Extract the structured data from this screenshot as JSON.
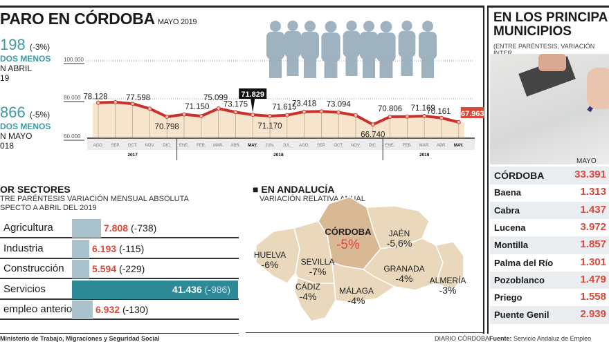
{
  "header": {
    "title": "PARO EN CÓRDOBA",
    "subtitle": "MAYO 2019"
  },
  "stats": [
    {
      "value": "198",
      "change": "(-3%)",
      "line1": "DOS MENOS",
      "line2": "N ABRIL",
      "line3": "19"
    },
    {
      "value": "866",
      "change": "(-5%)",
      "line1": "DOS MENOS",
      "line2": "N MAYO",
      "line3": "018"
    }
  ],
  "chart_data": {
    "type": "line",
    "title": "",
    "y_ticks": [
      "100.000",
      "80.000",
      "60.000"
    ],
    "ylim": [
      60000,
      100000
    ],
    "categories": [
      "AGO.",
      "SEP.",
      "OCT.",
      "NOV.",
      "DIC.",
      "ENE.",
      "FEB.",
      "MAR.",
      "ABR.",
      "MAY.",
      "JUN.",
      "JUL.",
      "AGO.",
      "SEP.",
      "OCT.",
      "NOV.",
      "DIC.",
      "ENE.",
      "FEB.",
      "MAR.",
      "ABR.",
      "MAY."
    ],
    "years": [
      "2017",
      "2018",
      "2019"
    ],
    "values": [
      78128,
      78400,
      77598,
      75000,
      70798,
      72000,
      71150,
      75099,
      73175,
      71829,
      71170,
      71615,
      73418,
      73600,
      73094,
      71500,
      66740,
      70806,
      70900,
      71169,
      70161,
      67963
    ],
    "labels": [
      "78.128",
      "",
      "77.598",
      "",
      "70.798",
      "",
      "71.150",
      "75.099",
      "73.175",
      "71.829",
      "71.170",
      "71.615",
      "73.418",
      "",
      "73.094",
      "",
      "66.740",
      "70.806",
      "",
      "71.169",
      "70.161",
      "67.963"
    ],
    "highlight_label": "71.829",
    "last_label": "67.963",
    "colors": {
      "line": "#c9302c",
      "fill": "#f6e5cc"
    }
  },
  "sectors": {
    "title": "OR SECTORES",
    "sub1": "TRE PARÉNTESIS VARIACIÓN MENSUAL ABSOLUTA",
    "sub2": "SPECTO A ABRIL DEL 2019",
    "items": [
      {
        "name": "Agricultura",
        "value": "7.808",
        "change": "(-738)",
        "num": 7808
      },
      {
        "name": "Industria",
        "value": "6.193",
        "change": "(-115)",
        "num": 6193
      },
      {
        "name": "Construcción",
        "value": "5.594",
        "change": "(-229)",
        "num": 5594
      },
      {
        "name": "Servicios",
        "value": "41.436",
        "change": "(-986)",
        "num": 41436
      },
      {
        "name": "empleo anterior",
        "value": "6.932",
        "change": "(-130)",
        "num": 6932
      }
    ]
  },
  "andalucia": {
    "title": "EN ANDALUCÍA",
    "sub": "VARIACIÓN RELATIVA ANUAL",
    "provinces": [
      {
        "name": "HUELVA",
        "value": "-6%"
      },
      {
        "name": "SEVILLA",
        "value": "-7%"
      },
      {
        "name": "CÓRDOBA",
        "value": "-5%"
      },
      {
        "name": "JAÉN",
        "value": "-5,6%"
      },
      {
        "name": "GRANADA",
        "value": "-4%"
      },
      {
        "name": "ALMERÍA",
        "value": "-3%"
      },
      {
        "name": "CÁDIZ",
        "value": "-4%"
      },
      {
        "name": "MÁLAGA",
        "value": "-4%"
      }
    ]
  },
  "municipios": {
    "title1": "EN LOS PRINCIPA",
    "title2": "MUNICIPIOS",
    "sub": "(ENTRE PARÉNTESIS, VARIACIÓN INTER",
    "col": "MAYO",
    "rows": [
      {
        "name": "CÓRDOBA",
        "value": "33.391"
      },
      {
        "name": "Baena",
        "value": "1.313"
      },
      {
        "name": "Cabra",
        "value": "1.437"
      },
      {
        "name": "Lucena",
        "value": "3.972"
      },
      {
        "name": "Montilla",
        "value": "1.857"
      },
      {
        "name": "Palma del Río",
        "value": "1.301"
      },
      {
        "name": "Pozoblanco",
        "value": "1.479"
      },
      {
        "name": "Priego",
        "value": "1.558"
      },
      {
        "name": "Puente Genil",
        "value": "2.939"
      }
    ]
  },
  "footer": {
    "source_left": "Ministerio de Trabajo, Migraciones y Seguridad Social",
    "credit": "DIARIO CÓRDOBA",
    "source_label": "Fuente:",
    "source_right": "Servicio Andaluz de Empleo"
  }
}
